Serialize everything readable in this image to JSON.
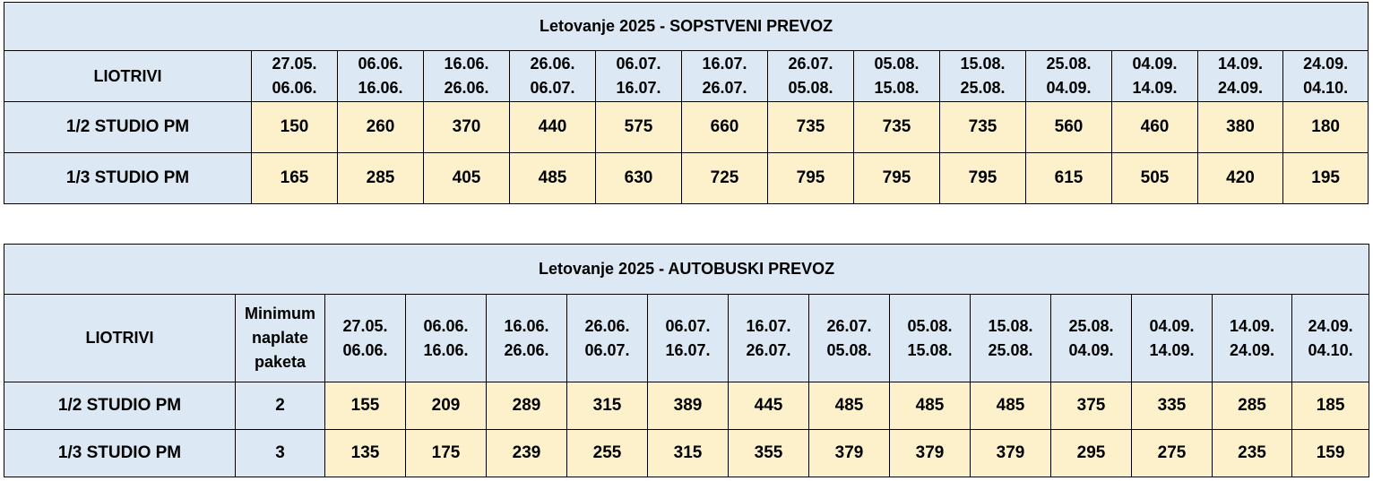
{
  "table1": {
    "title": "Letovanje 2025 - SOPSTVENI PREVOZ",
    "header_label": "LIOTRIVI",
    "periods": [
      [
        "27.05.",
        "06.06."
      ],
      [
        "06.06.",
        "16.06."
      ],
      [
        "16.06.",
        "26.06."
      ],
      [
        "26.06.",
        "06.07."
      ],
      [
        "06.07.",
        "16.07."
      ],
      [
        "16.07.",
        "26.07."
      ],
      [
        "26.07.",
        "05.08."
      ],
      [
        "05.08.",
        "15.08."
      ],
      [
        "15.08.",
        "25.08."
      ],
      [
        "25.08.",
        "04.09."
      ],
      [
        "04.09.",
        "14.09."
      ],
      [
        "14.09.",
        "24.09."
      ],
      [
        "24.09.",
        "04.10."
      ]
    ],
    "rows": [
      {
        "label": "1/2 STUDIO PM",
        "values": [
          "150",
          "260",
          "370",
          "440",
          "575",
          "660",
          "735",
          "735",
          "735",
          "560",
          "460",
          "380",
          "180"
        ]
      },
      {
        "label": "1/3 STUDIO PM",
        "values": [
          "165",
          "285",
          "405",
          "485",
          "630",
          "725",
          "795",
          "795",
          "795",
          "615",
          "505",
          "420",
          "195"
        ]
      }
    ]
  },
  "table2": {
    "title": "Letovanje 2025 - AUTOBUSKI PREVOZ",
    "header_label": "LIOTRIVI",
    "min_header": [
      "Minimum",
      "naplate",
      "paketa"
    ],
    "periods": [
      [
        "27.05.",
        "06.06."
      ],
      [
        "06.06.",
        "16.06."
      ],
      [
        "16.06.",
        "26.06."
      ],
      [
        "26.06.",
        "06.07."
      ],
      [
        "06.07.",
        "16.07."
      ],
      [
        "16.07.",
        "26.07."
      ],
      [
        "26.07.",
        "05.08."
      ],
      [
        "05.08.",
        "15.08."
      ],
      [
        "15.08.",
        "25.08."
      ],
      [
        "25.08.",
        "04.09."
      ],
      [
        "04.09.",
        "14.09."
      ],
      [
        "14.09.",
        "24.09."
      ],
      [
        "24.09.",
        "04.10."
      ]
    ],
    "rows": [
      {
        "label": "1/2 STUDIO PM",
        "min": "2",
        "values": [
          "155",
          "209",
          "289",
          "315",
          "389",
          "445",
          "485",
          "485",
          "485",
          "375",
          "335",
          "285",
          "185"
        ]
      },
      {
        "label": "1/3 STUDIO PM",
        "min": "3",
        "values": [
          "135",
          "175",
          "239",
          "255",
          "315",
          "355",
          "379",
          "379",
          "379",
          "295",
          "275",
          "235",
          "159"
        ]
      }
    ]
  },
  "colors": {
    "header_bg": "#dce9f4",
    "value_bg": "#fdf1cc",
    "border": "#000000"
  }
}
